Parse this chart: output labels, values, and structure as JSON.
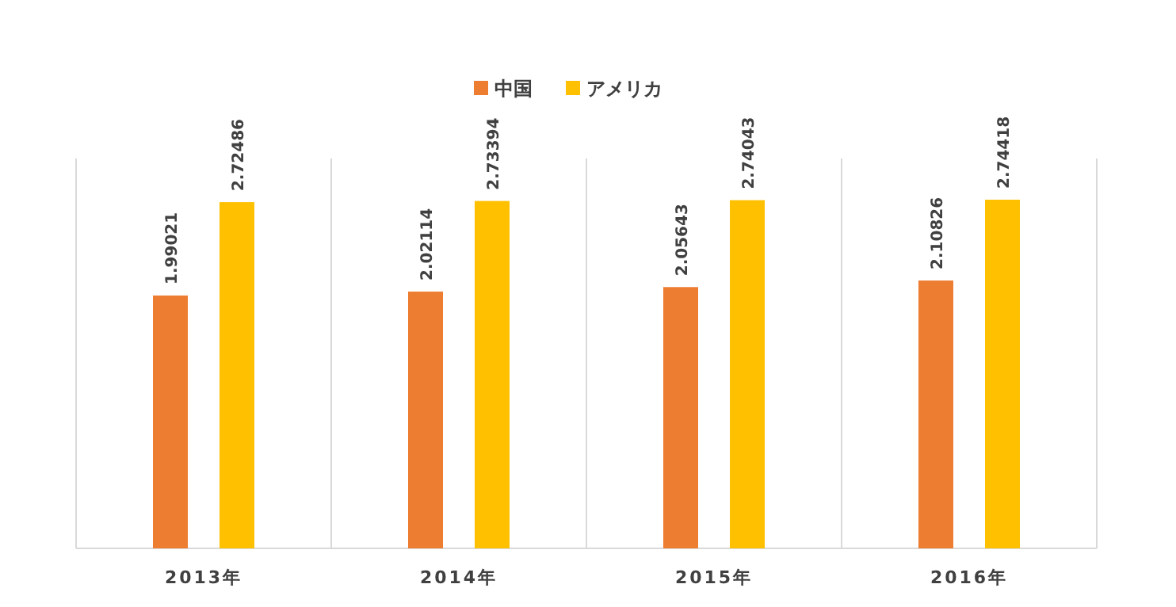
{
  "chart_data": {
    "type": "bar",
    "categories": [
      "2013年",
      "2014年",
      "2015年",
      "2016年"
    ],
    "series": [
      {
        "name": "中国",
        "color": "#ed7d31",
        "values": [
          1.99021,
          2.02114,
          2.05643,
          2.10826
        ]
      },
      {
        "name": "アメリカ",
        "color": "#ffc000",
        "values": [
          2.72486,
          2.73394,
          2.74043,
          2.74418
        ]
      }
    ],
    "data_labels": true,
    "grid": "x",
    "legend": "top"
  }
}
